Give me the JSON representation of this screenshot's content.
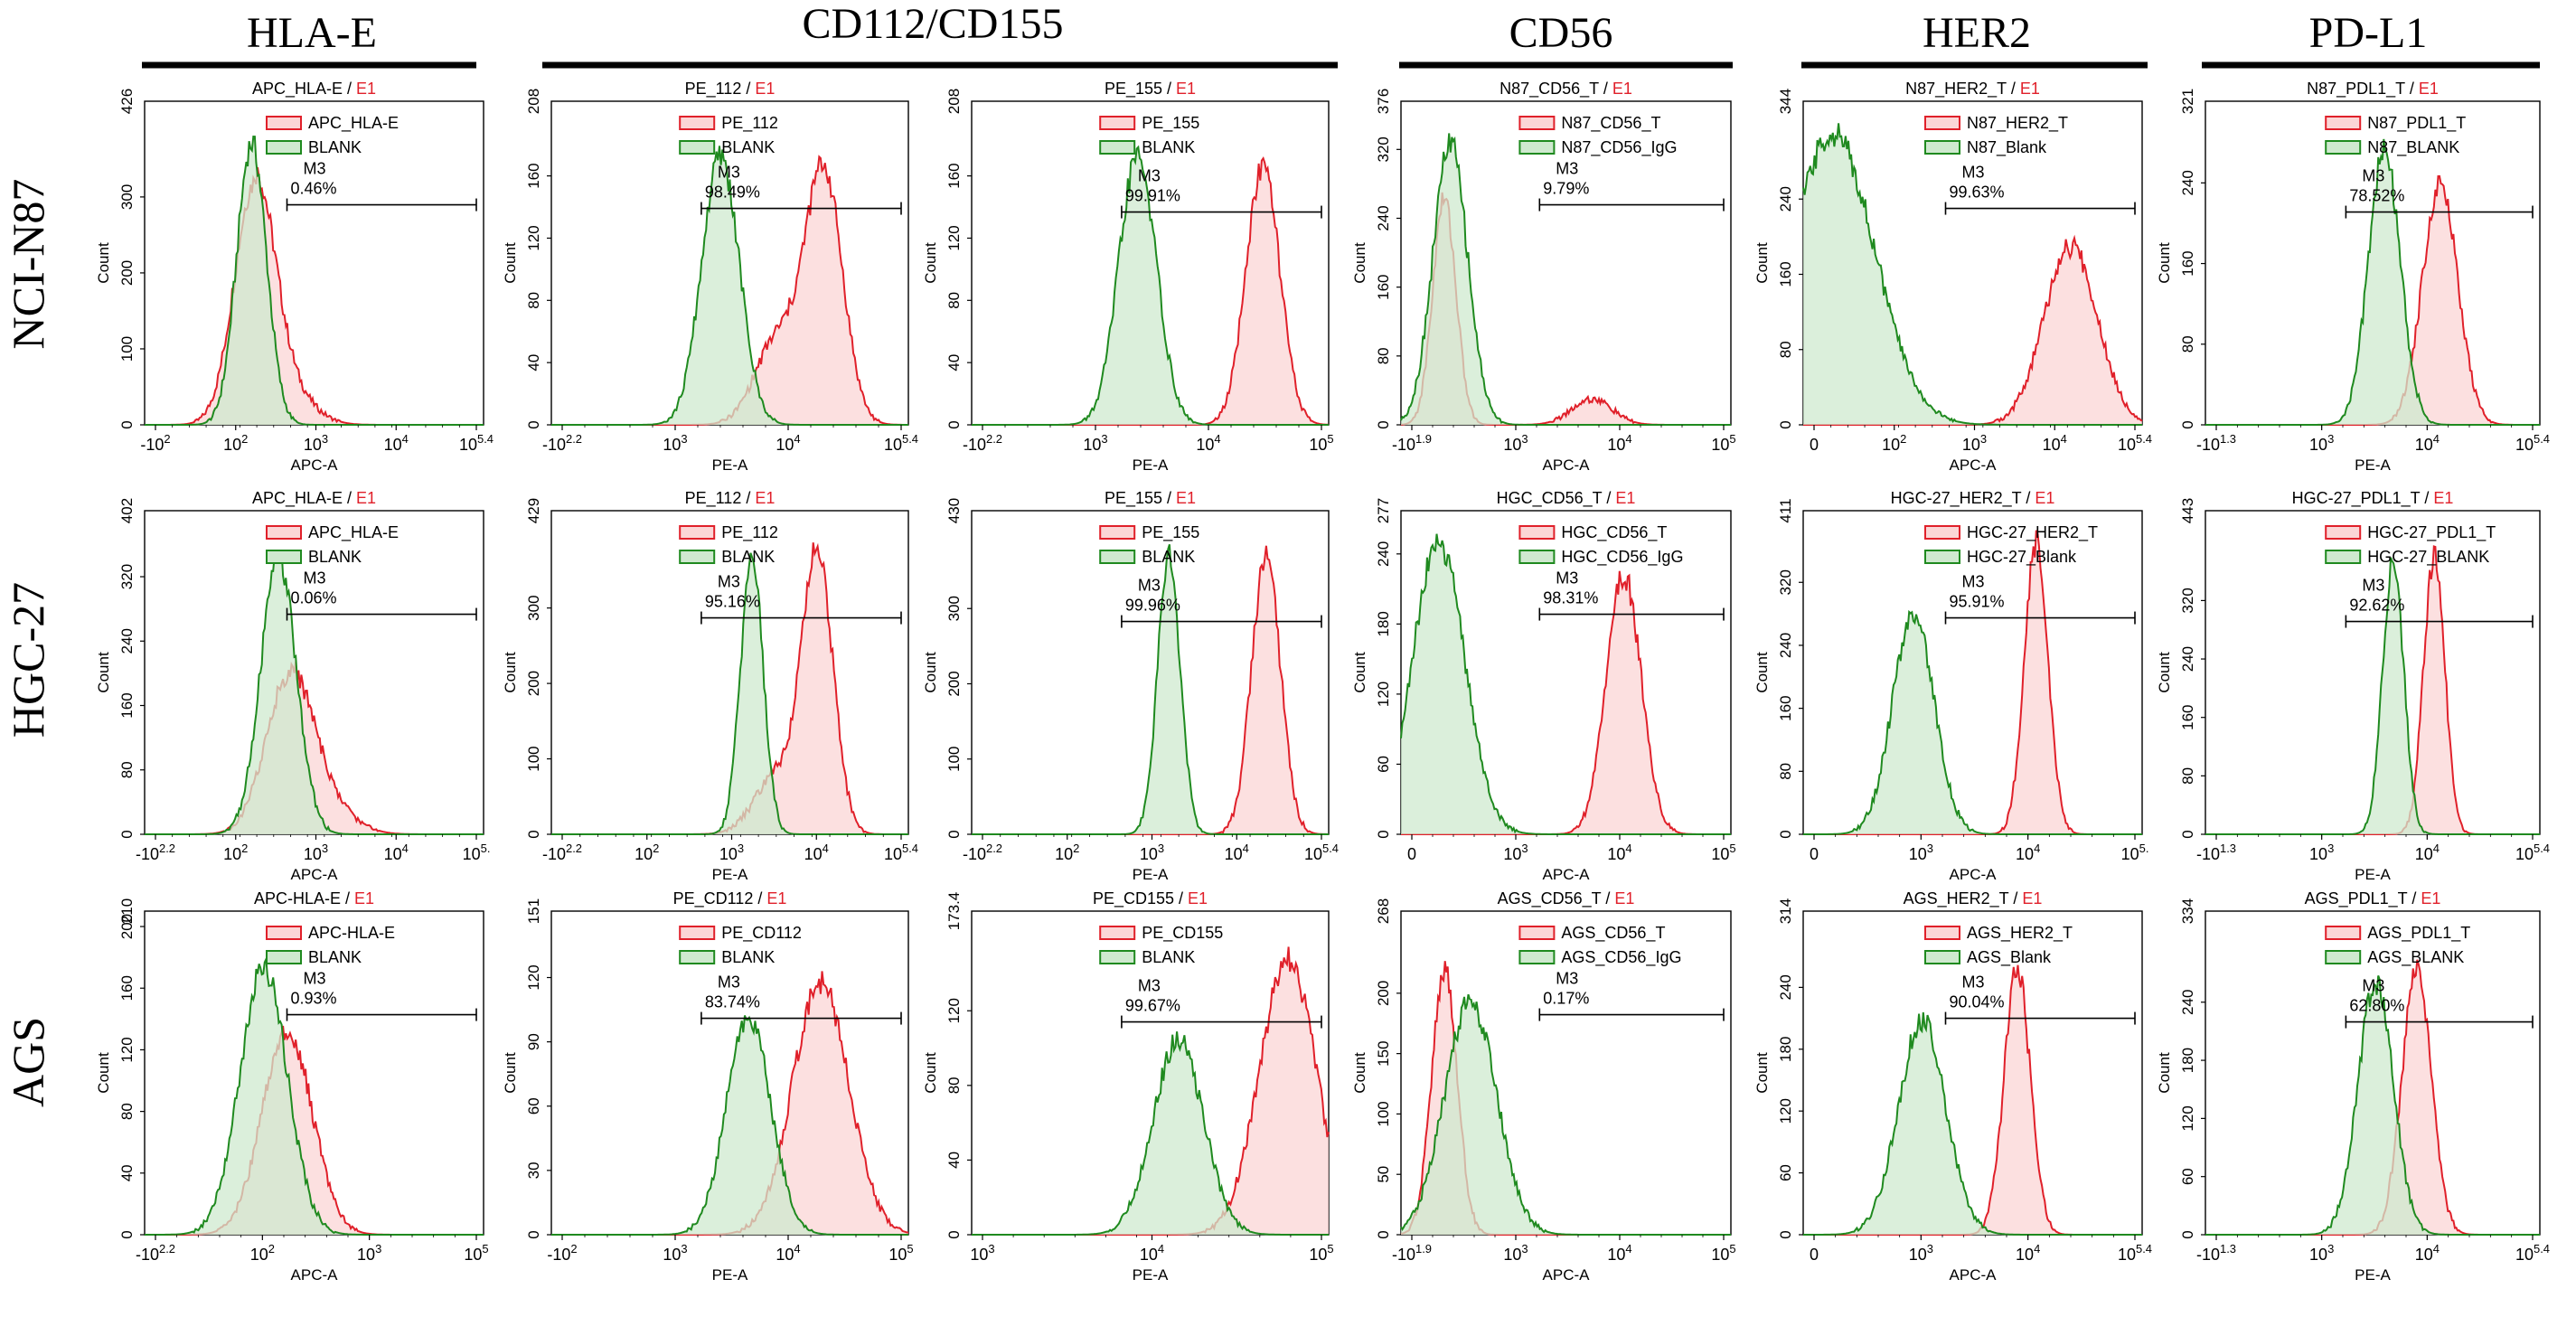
{
  "header": {
    "columns": [
      {
        "label": "HLA-E"
      },
      {
        "label": "CD112/CD155"
      },
      {
        "label": "CD56"
      },
      {
        "label": "HER2"
      },
      {
        "label": "PD-L1"
      }
    ],
    "rows": [
      {
        "label": "NCI-N87"
      },
      {
        "label": "HGC-27"
      },
      {
        "label": "AGS"
      }
    ]
  },
  "colors": {
    "sample": "#e0202a",
    "sample_fill": "#fbd6d6",
    "blank": "#1f8a1f",
    "blank_fill": "#cfe9cf",
    "overlap_fill": "#e2d2c3",
    "e1": "#e0202a"
  },
  "chart_data": [
    {
      "type": "area",
      "title": "APC_HLA-E",
      "title_suffix": "E1",
      "xlabel": "APC-A",
      "ylabel": "Count",
      "ymax": "426",
      "yticks": [
        "0",
        "100",
        "200",
        "300"
      ],
      "xticks": [
        "-10^2",
        "10^2",
        "10^3",
        "10^4",
        "10^5.4"
      ],
      "legend": [
        "APC_HLA-E",
        "BLANK"
      ],
      "gate": {
        "name": "M3",
        "percent": "0.46%"
      },
      "series": [
        {
          "name": "APC_HLA-E",
          "peak_log": 1.55,
          "width": 0.34,
          "peak_frac": 0.75,
          "tail_log": 2.15
        },
        {
          "name": "BLANK",
          "peak_log": 1.5,
          "width": 0.25,
          "peak_frac": 0.87
        }
      ]
    },
    {
      "type": "area",
      "title": "PE_112",
      "title_suffix": "E1",
      "xlabel": "PE-A",
      "ylabel": "Count",
      "ymax": "208",
      "yticks": [
        "0",
        "40",
        "80",
        "120",
        "160"
      ],
      "xticks": [
        "-10^2.2",
        "10^3",
        "10^4",
        "10^5.4"
      ],
      "legend": [
        "PE_112",
        "BLANK"
      ],
      "gate": {
        "name": "M3",
        "percent": "98.49%"
      },
      "series": [
        {
          "name": "PE_112",
          "peak_log": 4.05,
          "width": 0.3,
          "peak_frac": 0.78,
          "shoulder_log": 3.3,
          "shoulder_frac": 0.26
        },
        {
          "name": "BLANK",
          "peak_log": 2.4,
          "width": 0.3,
          "peak_frac": 0.83
        }
      ]
    },
    {
      "type": "area",
      "title": "PE_155",
      "title_suffix": "E1",
      "xlabel": "PE-A",
      "ylabel": "Count",
      "ymax": "208",
      "yticks": [
        "0",
        "40",
        "80",
        "120",
        "160"
      ],
      "xticks": [
        "-10^2.2",
        "10^3",
        "10^4",
        "10^5"
      ],
      "legend": [
        "PE_155",
        "BLANK"
      ],
      "gate": {
        "name": "M3",
        "percent": "99.91%"
      },
      "series": [
        {
          "name": "PE_155",
          "peak_log": 4.35,
          "width": 0.27,
          "peak_frac": 0.8
        },
        {
          "name": "BLANK",
          "peak_log": 2.35,
          "width": 0.3,
          "peak_frac": 0.83
        }
      ]
    },
    {
      "type": "area",
      "title": "N87_CD56_T",
      "title_suffix": "E1",
      "xlabel": "APC-A",
      "ylabel": "Count",
      "ymax": "376",
      "yticks": [
        "0",
        "80",
        "160",
        "240",
        "320"
      ],
      "xticks": [
        "-10^1.9",
        "10^3",
        "10^4",
        "10^5"
      ],
      "legend": [
        "N87_CD56_T",
        "N87_CD56_IgG"
      ],
      "gate": {
        "name": "M3",
        "percent": "9.79%"
      },
      "series": [
        {
          "name": "N87_CD56_T",
          "peak_log": 0.45,
          "width": 0.2,
          "peak_frac": 0.7,
          "shoulder_log": 3.0,
          "shoulder_frac": 0.08
        },
        {
          "name": "N87_CD56_IgG",
          "peak_log": 0.55,
          "width": 0.3,
          "peak_frac": 0.87
        }
      ]
    },
    {
      "type": "area",
      "title": "N87_HER2_T",
      "title_suffix": "E1",
      "xlabel": "APC-A",
      "ylabel": "Count",
      "ymax": "344",
      "yticks": [
        "0",
        "80",
        "160",
        "240"
      ],
      "xticks": [
        "0",
        "10^2",
        "10^3",
        "10^4",
        "10^5.4"
      ],
      "legend": [
        "N87_HER2_T",
        "N87_Blank"
      ],
      "gate": {
        "name": "M3",
        "percent": "99.63%"
      },
      "series": [
        {
          "name": "N87_HER2_T",
          "peak_log": 4.2,
          "width": 0.45,
          "peak_frac": 0.55
        },
        {
          "name": "N87_Blank",
          "peak_log": 0.2,
          "width": 0.7,
          "peak_frac": 0.9
        }
      ]
    },
    {
      "type": "area",
      "title": "N87_PDL1_T",
      "title_suffix": "E1",
      "xlabel": "PE-A",
      "ylabel": "Count",
      "ymax": "321",
      "yticks": [
        "0",
        "80",
        "160",
        "240"
      ],
      "xticks": [
        "-10^1.3",
        "10^3",
        "10^4",
        "10^5.4"
      ],
      "legend": [
        "N87_PDL1_T",
        "N87_BLANK"
      ],
      "gate": {
        "name": "M3",
        "percent": "78.52%"
      },
      "series": [
        {
          "name": "N87_PDL1_T",
          "peak_log": 3.7,
          "width": 0.3,
          "peak_frac": 0.75
        },
        {
          "name": "N87_BLANK",
          "peak_log": 2.75,
          "width": 0.27,
          "peak_frac": 0.85
        }
      ]
    },
    {
      "type": "area",
      "title": "APC_HLA-E",
      "title_suffix": "E1",
      "xlabel": "APC-A",
      "ylabel": "Count",
      "ymax": "402",
      "yticks": [
        "0",
        "80",
        "160",
        "240",
        "320"
      ],
      "xticks": [
        "-10^2.2",
        "10^2",
        "10^3",
        "10^4",
        "10^5."
      ],
      "legend": [
        "APC_HLA-E",
        "BLANK"
      ],
      "gate": {
        "name": "M3",
        "percent": "0.06%"
      },
      "series": [
        {
          "name": "APC_HLA-E",
          "peak_log": 2.15,
          "width": 0.4,
          "peak_frac": 0.5,
          "tail_log": 2.9
        },
        {
          "name": "BLANK",
          "peak_log": 1.95,
          "width": 0.3,
          "peak_frac": 0.85
        }
      ]
    },
    {
      "type": "area",
      "title": "PE_112",
      "title_suffix": "E1",
      "xlabel": "PE-A",
      "ylabel": "Count",
      "ymax": "429",
      "yticks": [
        "0",
        "100",
        "200",
        "300"
      ],
      "xticks": [
        "-10^2.2",
        "10^2",
        "10^3",
        "10^4",
        "10^5.4"
      ],
      "legend": [
        "PE_112",
        "BLANK"
      ],
      "gate": {
        "name": "M3",
        "percent": "95.16%"
      },
      "series": [
        {
          "name": "PE_112",
          "peak_log": 3.95,
          "width": 0.25,
          "peak_frac": 0.85,
          "shoulder_log": 3.3,
          "shoulder_frac": 0.18
        },
        {
          "name": "BLANK",
          "peak_log": 2.9,
          "width": 0.18,
          "peak_frac": 0.86
        }
      ]
    },
    {
      "type": "area",
      "title": "PE_155",
      "title_suffix": "E1",
      "xlabel": "PE-A",
      "ylabel": "Count",
      "ymax": "430",
      "yticks": [
        "0",
        "100",
        "200",
        "300"
      ],
      "xticks": [
        "-10^2.2",
        "10^2",
        "10^3",
        "10^4",
        "10^5.4"
      ],
      "legend": [
        "PE_155",
        "BLANK"
      ],
      "gate": {
        "name": "M3",
        "percent": "99.96%"
      },
      "series": [
        {
          "name": "PE_155",
          "peak_log": 4.4,
          "width": 0.23,
          "peak_frac": 0.86
        },
        {
          "name": "BLANK",
          "peak_log": 2.85,
          "width": 0.18,
          "peak_frac": 0.86
        }
      ]
    },
    {
      "type": "area",
      "title": "HGC_CD56_T",
      "title_suffix": "E1",
      "xlabel": "APC-A",
      "ylabel": "Count",
      "ymax": "277",
      "yticks": [
        "0",
        "60",
        "120",
        "180",
        "240"
      ],
      "xticks": [
        "0",
        "10^3",
        "10^4",
        "10^5"
      ],
      "legend": [
        "HGC_CD56_T",
        "HGC_CD56_IgG"
      ],
      "gate": {
        "name": "M3",
        "percent": "98.31%"
      },
      "series": [
        {
          "name": "HGC_CD56_T",
          "peak_log": 3.55,
          "width": 0.3,
          "peak_frac": 0.8
        },
        {
          "name": "HGC_CD56_IgG",
          "peak_log": 0.35,
          "width": 0.45,
          "peak_frac": 0.9
        }
      ]
    },
    {
      "type": "area",
      "title": "HGC-27_HER2_T",
      "title_suffix": "E1",
      "xlabel": "APC-A",
      "ylabel": "Count",
      "ymax": "411",
      "yticks": [
        "0",
        "80",
        "160",
        "240",
        "320"
      ],
      "xticks": [
        "0",
        "10^3",
        "10^4",
        "10^5."
      ],
      "legend": [
        "HGC-27_HER2_T",
        "HGC-27_Blank"
      ],
      "gate": {
        "name": "M3",
        "percent": "95.91%"
      },
      "series": [
        {
          "name": "HGC-27_HER2_T",
          "peak_log": 3.62,
          "width": 0.2,
          "peak_frac": 0.9
        },
        {
          "name": "HGC-27_Blank",
          "peak_log": 1.55,
          "width": 0.35,
          "peak_frac": 0.68
        }
      ]
    },
    {
      "type": "area",
      "title": "HGC-27_PDL1_T",
      "title_suffix": "E1",
      "xlabel": "PE-A",
      "ylabel": "Count",
      "ymax": "443",
      "yticks": [
        "0",
        "80",
        "160",
        "240",
        "320"
      ],
      "xticks": [
        "-10^1.3",
        "10^3",
        "10^4",
        "10^5.4"
      ],
      "legend": [
        "HGC-27_PDL1_T",
        "HGC-27_BLANK"
      ],
      "gate": {
        "name": "M3",
        "percent": "92.62%"
      },
      "series": [
        {
          "name": "HGC-27_PDL1_T",
          "peak_log": 3.6,
          "width": 0.18,
          "peak_frac": 0.86
        },
        {
          "name": "HGC-27_BLANK",
          "peak_log": 2.9,
          "width": 0.18,
          "peak_frac": 0.85
        }
      ]
    },
    {
      "type": "area",
      "title": "APC-HLA-E",
      "title_suffix": "E1",
      "xlabel": "APC-A",
      "ylabel": "Count",
      "ymax": "210",
      "yticks": [
        "0",
        "40",
        "80",
        "120",
        "160",
        "200"
      ],
      "xticks": [
        "-10^2.2",
        "10^2",
        "10^3",
        "10^5"
      ],
      "legend": [
        "APC-HLA-E",
        "BLANK"
      ],
      "gate": {
        "name": "M3",
        "percent": "0.93%"
      },
      "series": [
        {
          "name": "APC-HLA-E",
          "peak_log": 2.1,
          "width": 0.42,
          "peak_frac": 0.63
        },
        {
          "name": "BLANK",
          "peak_log": 1.7,
          "width": 0.4,
          "peak_frac": 0.82
        }
      ]
    },
    {
      "type": "area",
      "title": "PE_CD112",
      "title_suffix": "E1",
      "xlabel": "PE-A",
      "ylabel": "Count",
      "ymax": "151",
      "yticks": [
        "0",
        "30",
        "60",
        "90",
        "120"
      ],
      "xticks": [
        "-10^2",
        "10^3",
        "10^4",
        "10^5"
      ],
      "legend": [
        "PE_CD112",
        "BLANK"
      ],
      "gate": {
        "name": "M3",
        "percent": "83.74%"
      },
      "series": [
        {
          "name": "PE_CD112",
          "peak_log": 4.0,
          "width": 0.45,
          "peak_frac": 0.78
        },
        {
          "name": "BLANK",
          "peak_log": 2.85,
          "width": 0.35,
          "peak_frac": 0.68
        }
      ]
    },
    {
      "type": "area",
      "title": "PE_CD155",
      "title_suffix": "E1",
      "xlabel": "PE-A",
      "ylabel": "Count",
      "ymax": "173.4",
      "yticks": [
        "0",
        "40",
        "80",
        "120"
      ],
      "xticks": [
        "10^3",
        "10^4",
        "10^5"
      ],
      "legend": [
        "PE_CD155",
        "BLANK"
      ],
      "gate": {
        "name": "M3",
        "percent": "99.67%"
      },
      "series": [
        {
          "name": "PE_CD155",
          "peak_log": 4.75,
          "width": 0.45,
          "peak_frac": 0.85
        },
        {
          "name": "BLANK",
          "peak_log": 3.0,
          "width": 0.4,
          "peak_frac": 0.6
        }
      ]
    },
    {
      "type": "area",
      "title": "AGS_CD56_T",
      "title_suffix": "E1",
      "xlabel": "APC-A",
      "ylabel": "Count",
      "ymax": "268",
      "yticks": [
        "0",
        "50",
        "100",
        "150",
        "200"
      ],
      "xticks": [
        "-10^1.9",
        "10^3",
        "10^4",
        "10^5"
      ],
      "legend": [
        "AGS_CD56_T",
        "AGS_CD56_IgG"
      ],
      "gate": {
        "name": "M3",
        "percent": "0.17%"
      },
      "series": [
        {
          "name": "AGS_CD56_T",
          "peak_log": 0.45,
          "width": 0.22,
          "peak_frac": 0.82
        },
        {
          "name": "AGS_CD56_IgG",
          "peak_log": 0.9,
          "width": 0.45,
          "peak_frac": 0.72
        }
      ]
    },
    {
      "type": "area",
      "title": "AGS_HER2_T",
      "title_suffix": "E1",
      "xlabel": "APC-A",
      "ylabel": "Count",
      "ymax": "314",
      "yticks": [
        "0",
        "60",
        "120",
        "180",
        "240"
      ],
      "xticks": [
        "0",
        "10^3",
        "10^4",
        "10^5.4"
      ],
      "legend": [
        "AGS_HER2_T",
        "AGS_Blank"
      ],
      "gate": {
        "name": "M3",
        "percent": "90.04%"
      },
      "series": [
        {
          "name": "AGS_HER2_T",
          "peak_log": 3.3,
          "width": 0.22,
          "peak_frac": 0.82
        },
        {
          "name": "AGS_Blank",
          "peak_log": 1.7,
          "width": 0.4,
          "peak_frac": 0.66
        }
      ]
    },
    {
      "type": "area",
      "title": "AGS_PDL1_T",
      "title_suffix": "E1",
      "xlabel": "PE-A",
      "ylabel": "Count",
      "ymax": "334",
      "yticks": [
        "0",
        "60",
        "120",
        "180",
        "240"
      ],
      "xticks": [
        "-10^1.3",
        "10^3",
        "10^4",
        "10^5.4"
      ],
      "legend": [
        "AGS_PDL1_T",
        "AGS_BLANK"
      ],
      "gate": {
        "name": "M3",
        "percent": "62.80%"
      },
      "series": [
        {
          "name": "AGS_PDL1_T",
          "peak_log": 3.3,
          "width": 0.25,
          "peak_frac": 0.82
        },
        {
          "name": "AGS_BLANK",
          "peak_log": 2.6,
          "width": 0.3,
          "peak_frac": 0.78
        }
      ]
    }
  ]
}
